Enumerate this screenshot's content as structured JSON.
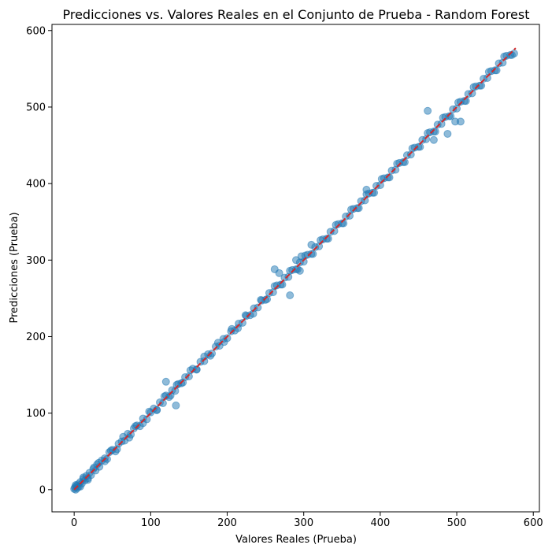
{
  "chart_data": {
    "type": "scatter",
    "title": "Predicciones vs. Valores Reales en el Conjunto de Prueba - Random Forest",
    "xlabel": "Valores Reales (Prueba)",
    "ylabel": "Predicciones (Prueba)",
    "xlim": [
      -29,
      608
    ],
    "ylim": [
      -29,
      608
    ],
    "xticks": [
      0,
      100,
      200,
      300,
      400,
      500,
      600
    ],
    "yticks": [
      0,
      100,
      200,
      300,
      400,
      500,
      600
    ],
    "grid": false,
    "colors": {
      "points": "#1f77b4",
      "reference_line": "#d62728"
    },
    "reference_line": {
      "style": "dashed",
      "from": [
        0,
        0
      ],
      "to": [
        577,
        577
      ]
    },
    "series": [
      {
        "x": [
          0,
          1,
          2,
          3,
          4,
          5,
          6,
          8,
          10,
          12,
          14,
          16,
          18,
          20,
          22,
          25,
          28,
          30,
          33,
          36,
          40,
          43,
          46,
          50,
          54,
          58,
          62,
          66,
          70,
          74,
          78,
          82,
          86,
          90,
          95,
          100,
          104,
          108,
          112,
          116,
          120,
          124,
          128,
          132,
          136,
          140,
          145,
          150,
          155,
          160,
          165,
          170,
          175,
          180,
          185,
          190,
          195,
          200,
          205,
          210,
          215,
          220,
          225,
          230,
          235,
          240,
          245,
          250,
          255,
          260,
          265,
          270,
          275,
          280,
          285,
          290,
          295,
          300,
          305,
          310,
          315,
          320,
          325,
          330,
          335,
          340,
          345,
          350,
          355,
          360,
          365,
          370,
          375,
          380,
          385,
          390,
          395,
          400,
          405,
          410,
          415,
          420,
          425,
          430,
          435,
          440,
          445,
          450,
          455,
          460,
          465,
          470,
          475,
          480,
          485,
          490,
          495,
          500,
          505,
          510,
          515,
          520,
          525,
          530,
          535,
          540,
          545,
          550,
          555,
          560,
          565,
          570,
          575
        ],
        "y": [
          1,
          3,
          0,
          5,
          2,
          7,
          4,
          10,
          8,
          14,
          12,
          18,
          15,
          22,
          19,
          27,
          25,
          33,
          30,
          38,
          41,
          40,
          49,
          52,
          50,
          60,
          63,
          64,
          73,
          72,
          80,
          84,
          83,
          93,
          92,
          101,
          106,
          104,
          114,
          113,
          123,
          121,
          130,
          129,
          138,
          139,
          147,
          148,
          158,
          157,
          167,
          168,
          177,
          178,
          187,
          188,
          197,
          198,
          207,
          208,
          217,
          218,
          227,
          228,
          237,
          238,
          247,
          248,
          257,
          258,
          267,
          268,
          277,
          278,
          287,
          288,
          297,
          298,
          307,
          308,
          317,
          318,
          327,
          328,
          337,
          338,
          347,
          348,
          357,
          358,
          367,
          368,
          377,
          378,
          387,
          388,
          397,
          398,
          407,
          408,
          417,
          418,
          427,
          428,
          437,
          438,
          447,
          448,
          457,
          458,
          467,
          468,
          477,
          478,
          487,
          488,
          497,
          498,
          507,
          508,
          517,
          518,
          527,
          528,
          537,
          538,
          547,
          548,
          557,
          558,
          567,
          568,
          570
        ]
      },
      {
        "x": [
          2,
          8,
          12,
          18,
          26,
          32,
          40,
          48,
          56,
          64,
          72,
          80,
          90,
          98,
          108,
          118,
          126,
          134,
          142,
          152,
          160,
          170,
          178,
          188,
          196,
          206,
          214,
          224,
          234,
          244,
          252,
          262,
          272,
          282,
          292,
          302,
          312,
          322,
          332,
          342,
          352,
          362,
          372,
          382,
          392,
          402,
          412,
          422,
          432,
          442,
          452,
          462,
          472,
          482,
          492,
          502,
          512,
          522,
          532,
          542,
          552,
          562,
          572
        ],
        "y": [
          6,
          4,
          16,
          13,
          29,
          35,
          37,
          51,
          53,
          69,
          68,
          83,
          87,
          102,
          104,
          122,
          123,
          137,
          140,
          156,
          157,
          174,
          175,
          192,
          193,
          210,
          211,
          228,
          230,
          248,
          249,
          266,
          268,
          286,
          288,
          306,
          308,
          326,
          328,
          346,
          348,
          366,
          368,
          386,
          388,
          406,
          408,
          426,
          428,
          446,
          448,
          466,
          468,
          486,
          488,
          506,
          508,
          526,
          528,
          546,
          548,
          566,
          568
        ]
      },
      {
        "x": [
          120,
          133,
          262,
          268,
          282,
          290,
          297,
          382,
          462,
          470,
          498,
          505,
          488,
          295,
          310
        ],
        "y": [
          141,
          110,
          288,
          283,
          254,
          300,
          305,
          392,
          495,
          457,
          481,
          481,
          465,
          286,
          320
        ]
      }
    ]
  }
}
